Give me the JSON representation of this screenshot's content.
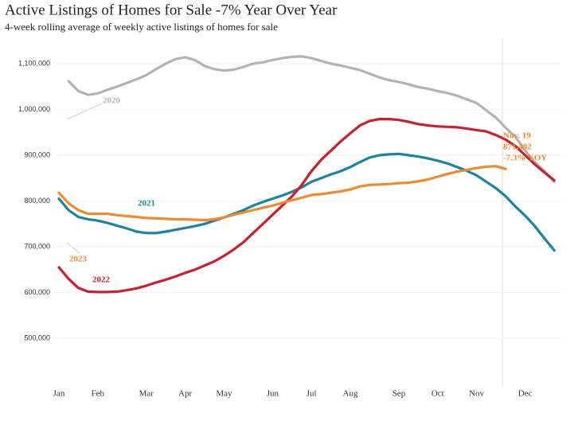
{
  "chart_data": {
    "type": "line",
    "title": "Active Listings of Homes for Sale -7% Year Over Year",
    "subtitle": "4-week rolling average of weekly active listings of homes for sale",
    "categories": [
      "Jan",
      null,
      null,
      null,
      "Feb",
      null,
      null,
      null,
      null,
      "Mar",
      null,
      null,
      null,
      "Apr",
      null,
      null,
      null,
      "May",
      null,
      null,
      null,
      null,
      "Jun",
      null,
      null,
      null,
      "Jul",
      null,
      null,
      null,
      "Aug",
      null,
      null,
      null,
      null,
      "Sep",
      null,
      null,
      null,
      "Oct",
      null,
      null,
      null,
      "Nov",
      null,
      null,
      null,
      null,
      "Dec",
      null,
      null,
      null
    ],
    "ylim": [
      380000,
      1160000
    ],
    "yticks": [
      {
        "value": 500000,
        "label": "500,000"
      },
      {
        "value": 600000,
        "label": "600,000"
      },
      {
        "value": 700000,
        "label": "700,000"
      },
      {
        "value": 800000,
        "label": "800,000"
      },
      {
        "value": 900000,
        "label": "900,000"
      },
      {
        "value": 1000000,
        "label": "1,000,000"
      },
      {
        "value": 1100000,
        "label": "1,100,000"
      }
    ],
    "grid": true,
    "series": [
      {
        "name": "2020",
        "color": "#b3b3b3",
        "values": [
          null,
          1062000,
          1040000,
          1032000,
          1035000,
          1043000,
          1050000,
          1058000,
          1066000,
          1075000,
          1088000,
          1100000,
          1110000,
          1114000,
          1108000,
          1095000,
          1088000,
          1085000,
          1087000,
          1093000,
          1100000,
          1103000,
          1108000,
          1112000,
          1115000,
          1116000,
          1112000,
          1106000,
          1100000,
          1096000,
          1091000,
          1086000,
          1078000,
          1070000,
          1064000,
          1060000,
          1055000,
          1049000,
          1045000,
          1040000,
          1036000,
          1030000,
          1022000,
          1014000,
          998000,
          982000,
          960000,
          940000,
          910000,
          885000,
          865000,
          842000
        ]
      },
      {
        "name": "2021",
        "color": "#1a84a3",
        "values": [
          805000,
          780000,
          765000,
          760000,
          757000,
          752000,
          746000,
          740000,
          733000,
          730000,
          730000,
          733000,
          737000,
          741000,
          745000,
          750000,
          757000,
          764000,
          772000,
          780000,
          790000,
          798000,
          805000,
          812000,
          820000,
          830000,
          842000,
          850000,
          858000,
          865000,
          874000,
          885000,
          895000,
          900000,
          902000,
          903000,
          900000,
          897000,
          893000,
          888000,
          882000,
          874000,
          866000,
          856000,
          842000,
          828000,
          810000,
          788000,
          768000,
          745000,
          718000,
          692000
        ]
      },
      {
        "name": "2022",
        "color": "#c8202f",
        "values": [
          655000,
          630000,
          610000,
          602000,
          601000,
          601000,
          602000,
          605000,
          609000,
          615000,
          622000,
          628000,
          635000,
          643000,
          650000,
          659000,
          668000,
          680000,
          694000,
          710000,
          730000,
          750000,
          770000,
          790000,
          810000,
          835000,
          865000,
          890000,
          910000,
          930000,
          948000,
          965000,
          975000,
          979000,
          979000,
          977000,
          973000,
          968000,
          965000,
          963000,
          962000,
          961000,
          958000,
          955000,
          952000,
          944000,
          934000,
          920000,
          900000,
          880000,
          862000,
          845000
        ]
      },
      {
        "name": "2023",
        "color": "#f08a2c",
        "values": [
          818000,
          795000,
          780000,
          772000,
          772000,
          772000,
          769000,
          767000,
          765000,
          763000,
          762000,
          761000,
          760000,
          760000,
          759000,
          758000,
          760000,
          764000,
          770000,
          775000,
          780000,
          785000,
          790000,
          796000,
          802000,
          807000,
          813000,
          815000,
          818000,
          821000,
          825000,
          832000,
          835000,
          836000,
          837000,
          839000,
          840000,
          843000,
          847000,
          853000,
          859000,
          864000,
          868000,
          872000,
          875000,
          876000,
          870000,
          null,
          null,
          null,
          null,
          null
        ]
      }
    ],
    "annotation": [
      "Nov. 19",
      "871,402",
      "-7.3% YOY"
    ]
  }
}
